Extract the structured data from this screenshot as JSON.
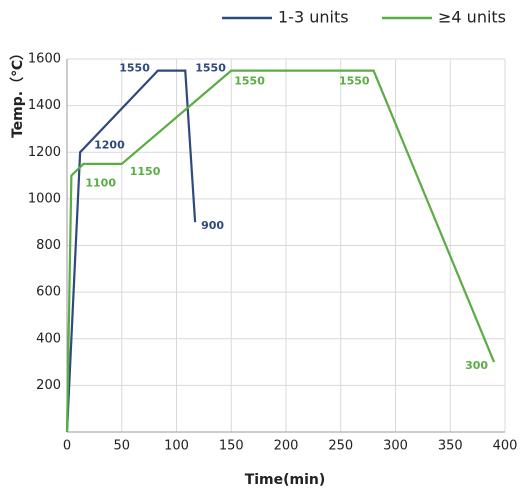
{
  "chart_data": {
    "type": "line",
    "x_label": "Time(min)",
    "y_label": "Temp.（℃）",
    "series": [
      {
        "name": "1-3 units",
        "color": "#2e4a7d",
        "x": [
          0,
          12,
          83,
          108,
          117
        ],
        "values": [
          0,
          1200,
          1550,
          1550,
          900
        ]
      },
      {
        "name": "≥4 units",
        "color": "#5aac44",
        "x": [
          0,
          4,
          15,
          50,
          150,
          280,
          390
        ],
        "values": [
          0,
          1100,
          1150,
          1150,
          1550,
          1550,
          300
        ]
      }
    ],
    "xlim": [
      0,
      400
    ],
    "xticks": [
      0,
      50,
      100,
      150,
      200,
      250,
      300,
      350,
      400
    ],
    "ylim": [
      0,
      1600
    ],
    "yticks": [
      200,
      400,
      600,
      800,
      1000,
      1200,
      1400,
      1600
    ],
    "grid": true
  }
}
